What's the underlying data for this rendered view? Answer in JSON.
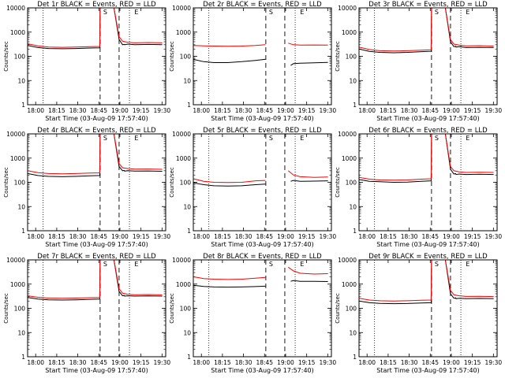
{
  "common": {
    "start_times": [
      "18:00",
      "18:15",
      "18:30",
      "18:45",
      "19:00",
      "19:15",
      "19:30"
    ],
    "ylabel": "Counts/sec",
    "xlabel": "Start Time (03-Aug-09 17:57:40)",
    "y_ticks": [
      "1",
      "10",
      "100",
      "1000",
      "10000"
    ],
    "markers": [
      "S",
      "E"
    ],
    "colors": {
      "events": "#000000",
      "lld": "#ff0000"
    }
  },
  "chart_data": [
    {
      "type": "line",
      "title": "Det 1r BLACK = Events, RED = LLD",
      "xlabel": "Start Time (03-Aug-09 17:57:40)",
      "ylabel": "Counts/sec",
      "x_unit": "minutes after 17:57:40",
      "xlim": [
        0,
        40
      ],
      "ylim": [
        1,
        10000
      ],
      "yscale": "log",
      "x_ticks": [
        "18:00",
        "18:15",
        "18:30",
        "18:45",
        "19:00",
        "19:15",
        "19:30"
      ],
      "series": [
        {
          "name": "BLACK = Events",
          "x": [
            0,
            3,
            6,
            10,
            14,
            18,
            20.9,
            21.0,
            23,
            25,
            26.5,
            27.5,
            28,
            28.1,
            29,
            31,
            35,
            39
          ],
          "y": [
            280,
            230,
            210,
            205,
            210,
            220,
            225,
            10000,
            10000,
            10000,
            500,
            300,
            310,
            300,
            320,
            300,
            310,
            300
          ]
        },
        {
          "name": "RED = LLD",
          "x": [
            0,
            3,
            6,
            10,
            14,
            18,
            20.9,
            21.0,
            23,
            25,
            26.5,
            27.5,
            29,
            31,
            35,
            39
          ],
          "y": [
            330,
            270,
            240,
            235,
            240,
            250,
            255,
            10000,
            10000,
            10000,
            650,
            420,
            380,
            360,
            370,
            360
          ]
        }
      ],
      "dashed_lines_x": [
        21,
        26.5
      ],
      "dotted_lines_x": [
        4.5,
        29.5
      ],
      "markers": [
        {
          "label": "S",
          "x": 22.5
        },
        {
          "label": "E",
          "x": 31.5
        }
      ]
    },
    {
      "type": "line",
      "title": "Det 2r BLACK = Events, RED = LLD",
      "xlabel": "Start Time (03-Aug-09 17:57:40)",
      "ylabel": "Counts/sec",
      "x_unit": "minutes after 17:57:40",
      "xlim": [
        0,
        40
      ],
      "ylim": [
        1,
        10000
      ],
      "yscale": "log",
      "x_ticks": [
        "18:00",
        "18:15",
        "18:30",
        "18:45",
        "19:00",
        "19:15",
        "19:30"
      ],
      "series": [
        {
          "name": "BLACK = Events",
          "x": [
            0,
            3,
            6,
            10,
            14,
            18,
            20.9
          ],
          "y": [
            75,
            60,
            55,
            55,
            60,
            68,
            75
          ]
        },
        {
          "name": "BLACK = Events (post)",
          "x": [
            28.2,
            29,
            31,
            35,
            39
          ],
          "y": [
            42,
            50,
            52,
            54,
            56
          ]
        },
        {
          "name": "RED = LLD",
          "x": [
            0,
            3,
            6,
            10,
            14,
            18,
            20.9
          ],
          "y": [
            280,
            270,
            265,
            260,
            265,
            280,
            300
          ]
        },
        {
          "name": "RED = LLD (post)",
          "x": [
            27.5,
            29,
            31,
            35,
            39
          ],
          "y": [
            350,
            300,
            290,
            295,
            290
          ]
        }
      ],
      "dashed_lines_x": [
        21,
        26.5
      ],
      "dotted_lines_x": [
        4.5,
        29.5
      ],
      "markers": [
        {
          "label": "S",
          "x": 22.5
        },
        {
          "label": "E",
          "x": 31.5
        }
      ]
    },
    {
      "type": "line",
      "title": "Det 3r BLACK = Events, RED = LLD",
      "xlabel": "Start Time (03-Aug-09 17:57:40)",
      "ylabel": "Counts/sec",
      "x_unit": "minutes after 17:57:40",
      "xlim": [
        0,
        40
      ],
      "ylim": [
        1,
        10000
      ],
      "yscale": "log",
      "x_ticks": [
        "18:00",
        "18:15",
        "18:30",
        "18:45",
        "19:00",
        "19:15",
        "19:30"
      ],
      "series": [
        {
          "name": "BLACK = Events",
          "x": [
            0,
            3,
            6,
            10,
            14,
            18,
            20.9,
            21.0,
            23,
            25,
            26.5,
            27.5,
            28,
            28.1,
            29,
            31,
            35,
            39
          ],
          "y": [
            200,
            160,
            145,
            140,
            145,
            155,
            160,
            10000,
            10000,
            10000,
            400,
            250,
            260,
            240,
            250,
            230,
            235,
            230
          ]
        },
        {
          "name": "RED = LLD",
          "x": [
            0,
            3,
            6,
            10,
            14,
            18,
            20.9,
            21.0,
            23,
            25,
            26.5,
            27.5,
            29,
            31,
            35,
            39
          ],
          "y": [
            240,
            190,
            170,
            165,
            170,
            180,
            185,
            10000,
            10000,
            10000,
            500,
            320,
            290,
            270,
            275,
            265
          ]
        }
      ],
      "dashed_lines_x": [
        21,
        26.5
      ],
      "dotted_lines_x": [
        4.5,
        29.5
      ],
      "markers": [
        {
          "label": "S",
          "x": 22.5
        },
        {
          "label": "E",
          "x": 31.5
        }
      ]
    },
    {
      "type": "line",
      "title": "Det 4r BLACK = Events, RED = LLD",
      "xlabel": "Start Time (03-Aug-09 17:57:40)",
      "ylabel": "Counts/sec",
      "x_unit": "minutes after 17:57:40",
      "xlim": [
        0,
        40
      ],
      "ylim": [
        1,
        10000
      ],
      "yscale": "log",
      "x_ticks": [
        "18:00",
        "18:15",
        "18:30",
        "18:45",
        "19:00",
        "19:15",
        "19:30"
      ],
      "series": [
        {
          "name": "BLACK = Events",
          "x": [
            0,
            3,
            6,
            10,
            14,
            18,
            20.9,
            21.0,
            23,
            25,
            26.5,
            27.5,
            28,
            28.1,
            29,
            31,
            35,
            39
          ],
          "y": [
            230,
            190,
            175,
            170,
            175,
            185,
            190,
            10000,
            10000,
            10000,
            450,
            300,
            310,
            290,
            300,
            290,
            295,
            285
          ]
        },
        {
          "name": "RED = LLD",
          "x": [
            0,
            3,
            6,
            10,
            14,
            18,
            20.9,
            21.0,
            23,
            25,
            26.5,
            27.5,
            29,
            31,
            35,
            39
          ],
          "y": [
            300,
            250,
            230,
            225,
            230,
            240,
            245,
            10000,
            10000,
            10000,
            600,
            400,
            370,
            350,
            355,
            345
          ]
        }
      ],
      "dashed_lines_x": [
        21,
        26.5
      ],
      "dotted_lines_x": [
        4.5,
        29.5
      ],
      "markers": [
        {
          "label": "S",
          "x": 22.5
        },
        {
          "label": "E",
          "x": 31.5
        }
      ]
    },
    {
      "type": "line",
      "title": "Det 5r BLACK = Events, RED = LLD",
      "xlabel": "Start Time (03-Aug-09 17:57:40)",
      "ylabel": "Counts/sec",
      "x_unit": "minutes after 17:57:40",
      "xlim": [
        0,
        40
      ],
      "ylim": [
        1,
        10000
      ],
      "yscale": "log",
      "x_ticks": [
        "18:00",
        "18:15",
        "18:30",
        "18:45",
        "19:00",
        "19:15",
        "19:30"
      ],
      "series": [
        {
          "name": "BLACK = Events",
          "x": [
            0,
            3,
            6,
            10,
            14,
            18,
            20.9
          ],
          "y": [
            95,
            80,
            72,
            70,
            72,
            80,
            85
          ]
        },
        {
          "name": "BLACK = Events (post)",
          "x": [
            28.2,
            29,
            31,
            35,
            39
          ],
          "y": [
            110,
            120,
            110,
            112,
            115
          ]
        },
        {
          "name": "RED = LLD",
          "x": [
            0,
            3,
            6,
            10,
            14,
            18,
            20.9
          ],
          "y": [
            140,
            110,
            100,
            98,
            100,
            115,
            120
          ]
        },
        {
          "name": "RED = LLD (post)",
          "x": [
            27.5,
            29,
            31,
            35,
            39
          ],
          "y": [
            300,
            200,
            170,
            160,
            165
          ]
        }
      ],
      "dashed_lines_x": [
        21,
        26.5
      ],
      "dotted_lines_x": [
        4.5,
        29.5
      ],
      "markers": [
        {
          "label": "S",
          "x": 22.5
        },
        {
          "label": "E",
          "x": 31.5
        }
      ]
    },
    {
      "type": "line",
      "title": "Det 6r BLACK = Events, RED = LLD",
      "xlabel": "Start Time (03-Aug-09 17:57:40)",
      "ylabel": "Counts/sec",
      "x_unit": "minutes after 17:57:40",
      "xlim": [
        0,
        40
      ],
      "ylim": [
        1,
        10000
      ],
      "yscale": "log",
      "x_ticks": [
        "18:00",
        "18:15",
        "18:30",
        "18:45",
        "19:00",
        "19:15",
        "19:30"
      ],
      "series": [
        {
          "name": "BLACK = Events",
          "x": [
            0,
            3,
            6,
            10,
            14,
            18,
            20.9,
            21.0,
            23,
            25,
            26.5,
            27.5,
            28,
            28.1,
            29,
            31,
            35,
            39
          ],
          "y": [
            130,
            110,
            105,
            100,
            102,
            110,
            115,
            10000,
            10000,
            10000,
            350,
            220,
            230,
            210,
            220,
            210,
            215,
            210
          ]
        },
        {
          "name": "RED = LLD",
          "x": [
            0,
            3,
            6,
            10,
            14,
            18,
            20.9,
            21.0,
            23,
            25,
            26.5,
            27.5,
            29,
            31,
            35,
            39
          ],
          "y": [
            160,
            135,
            125,
            122,
            125,
            135,
            140,
            10000,
            10000,
            10000,
            450,
            300,
            270,
            255,
            260,
            255
          ]
        }
      ],
      "dashed_lines_x": [
        21,
        26.5
      ],
      "dotted_lines_x": [
        4.5,
        29.5
      ],
      "markers": [
        {
          "label": "S",
          "x": 22.5
        },
        {
          "label": "E",
          "x": 31.5
        }
      ]
    },
    {
      "type": "line",
      "title": "Det 7r BLACK = Events, RED = LLD",
      "xlabel": "Start Time (03-Aug-09 17:57:40)",
      "ylabel": "Counts/sec",
      "x_unit": "minutes after 17:57:40",
      "xlim": [
        0,
        40
      ],
      "ylim": [
        1,
        10000
      ],
      "yscale": "log",
      "x_ticks": [
        "18:00",
        "18:15",
        "18:30",
        "18:45",
        "19:00",
        "19:15",
        "19:30"
      ],
      "series": [
        {
          "name": "BLACK = Events",
          "x": [
            0,
            3,
            6,
            10,
            14,
            18,
            20.9,
            21.0,
            23,
            25,
            26.5,
            27.5,
            28,
            28.1,
            29,
            31,
            35,
            39
          ],
          "y": [
            280,
            240,
            225,
            220,
            225,
            235,
            240,
            10000,
            10000,
            10000,
            500,
            330,
            340,
            320,
            330,
            320,
            325,
            320
          ]
        },
        {
          "name": "RED = LLD",
          "x": [
            0,
            3,
            6,
            10,
            14,
            18,
            20.9,
            21.0,
            23,
            25,
            26.5,
            27.5,
            29,
            31,
            35,
            39
          ],
          "y": [
            330,
            285,
            265,
            260,
            265,
            275,
            280,
            10000,
            10000,
            10000,
            650,
            420,
            380,
            365,
            370,
            360
          ]
        }
      ],
      "dashed_lines_x": [
        21,
        26.5
      ],
      "dotted_lines_x": [
        4.5,
        29.5
      ],
      "markers": [
        {
          "label": "S",
          "x": 22.5
        },
        {
          "label": "E",
          "x": 31.5
        }
      ]
    },
    {
      "type": "line",
      "title": "Det 8r BLACK = Events, RED = LLD",
      "xlabel": "Start Time (03-Aug-09 17:57:40)",
      "ylabel": "Counts/sec",
      "x_unit": "minutes after 17:57:40",
      "xlim": [
        0,
        40
      ],
      "ylim": [
        1,
        10000
      ],
      "yscale": "log",
      "x_ticks": [
        "18:00",
        "18:15",
        "18:30",
        "18:45",
        "19:00",
        "19:15",
        "19:30"
      ],
      "series": [
        {
          "name": "BLACK = Events",
          "x": [
            0,
            3,
            6,
            10,
            14,
            18,
            20.9
          ],
          "y": [
            900,
            800,
            760,
            750,
            760,
            790,
            820
          ]
        },
        {
          "name": "BLACK = Events (post)",
          "x": [
            28.2,
            29,
            31,
            35,
            39
          ],
          "y": [
            1300,
            1400,
            1300,
            1300,
            1280
          ]
        },
        {
          "name": "RED = LLD",
          "x": [
            0,
            3,
            6,
            10,
            14,
            18,
            20.9
          ],
          "y": [
            2000,
            1700,
            1600,
            1550,
            1600,
            1750,
            1900
          ]
        },
        {
          "name": "RED = LLD (post)",
          "x": [
            27.5,
            29,
            31,
            35,
            39
          ],
          "y": [
            5000,
            3500,
            2800,
            2600,
            2700
          ]
        }
      ],
      "dashed_lines_x": [
        21,
        26.5
      ],
      "dotted_lines_x": [
        4.5,
        29.5
      ],
      "markers": [
        {
          "label": "S",
          "x": 22.5
        },
        {
          "label": "E",
          "x": 31.5
        }
      ]
    },
    {
      "type": "line",
      "title": "Det 9r BLACK = Events, RED = LLD",
      "xlabel": "Start Time (03-Aug-09 17:57:40)",
      "ylabel": "Counts/sec",
      "x_unit": "minutes after 17:57:40",
      "xlim": [
        0,
        40
      ],
      "ylim": [
        1,
        10000
      ],
      "yscale": "log",
      "x_ticks": [
        "18:00",
        "18:15",
        "18:30",
        "18:45",
        "19:00",
        "19:15",
        "19:30"
      ],
      "series": [
        {
          "name": "BLACK = Events",
          "x": [
            0,
            3,
            6,
            10,
            14,
            18,
            20.9,
            21.0,
            23,
            25,
            26.5,
            27.5,
            28,
            28.1,
            29,
            31,
            35,
            39
          ],
          "y": [
            200,
            170,
            160,
            155,
            158,
            165,
            170,
            10000,
            10000,
            10000,
            400,
            260,
            270,
            250,
            260,
            250,
            255,
            250
          ]
        },
        {
          "name": "RED = LLD",
          "x": [
            0,
            3,
            6,
            10,
            14,
            18,
            20.9,
            21.0,
            23,
            25,
            26.5,
            27.5,
            29,
            31,
            35,
            39
          ],
          "y": [
            260,
            220,
            205,
            200,
            205,
            215,
            220,
            10000,
            10000,
            10000,
            550,
            360,
            330,
            310,
            315,
            305
          ]
        }
      ],
      "dashed_lines_x": [
        21,
        26.5
      ],
      "dotted_lines_x": [
        4.5,
        29.5
      ],
      "markers": [
        {
          "label": "S",
          "x": 22.5
        },
        {
          "label": "E",
          "x": 31.5
        }
      ]
    }
  ]
}
